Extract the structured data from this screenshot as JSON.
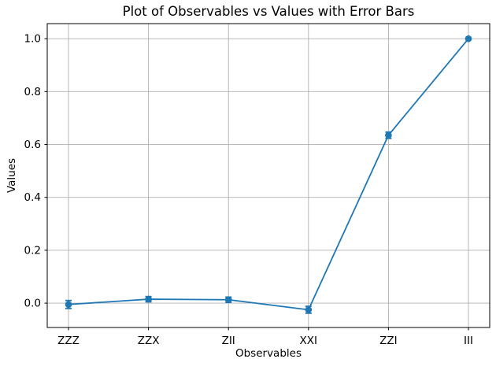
{
  "chart_data": {
    "type": "line",
    "title": "Plot of Observables vs Values with Error Bars",
    "xlabel": "Observables",
    "ylabel": "Values",
    "categories": [
      "ZZZ",
      "ZZX",
      "ZII",
      "XXI",
      "ZZI",
      "III"
    ],
    "series": [
      {
        "name": "Values",
        "values": [
          -0.005,
          0.015,
          0.013,
          -0.025,
          0.635,
          1.0
        ],
        "errors": [
          0.015,
          0.01,
          0.01,
          0.013,
          0.012,
          0.0
        ]
      }
    ],
    "yticks": [
      0.0,
      0.2,
      0.4,
      0.6,
      0.8,
      1.0
    ],
    "ytick_labels": [
      "0.0",
      "0.2",
      "0.4",
      "0.6",
      "0.8",
      "1.0"
    ],
    "ylim": [
      -0.092,
      1.057
    ],
    "grid": true,
    "legend": "none",
    "line_color": "#1f77b4",
    "grid_color": "#b0b0b0",
    "axis_color": "#000000",
    "marker": "o",
    "capsize": 4
  }
}
